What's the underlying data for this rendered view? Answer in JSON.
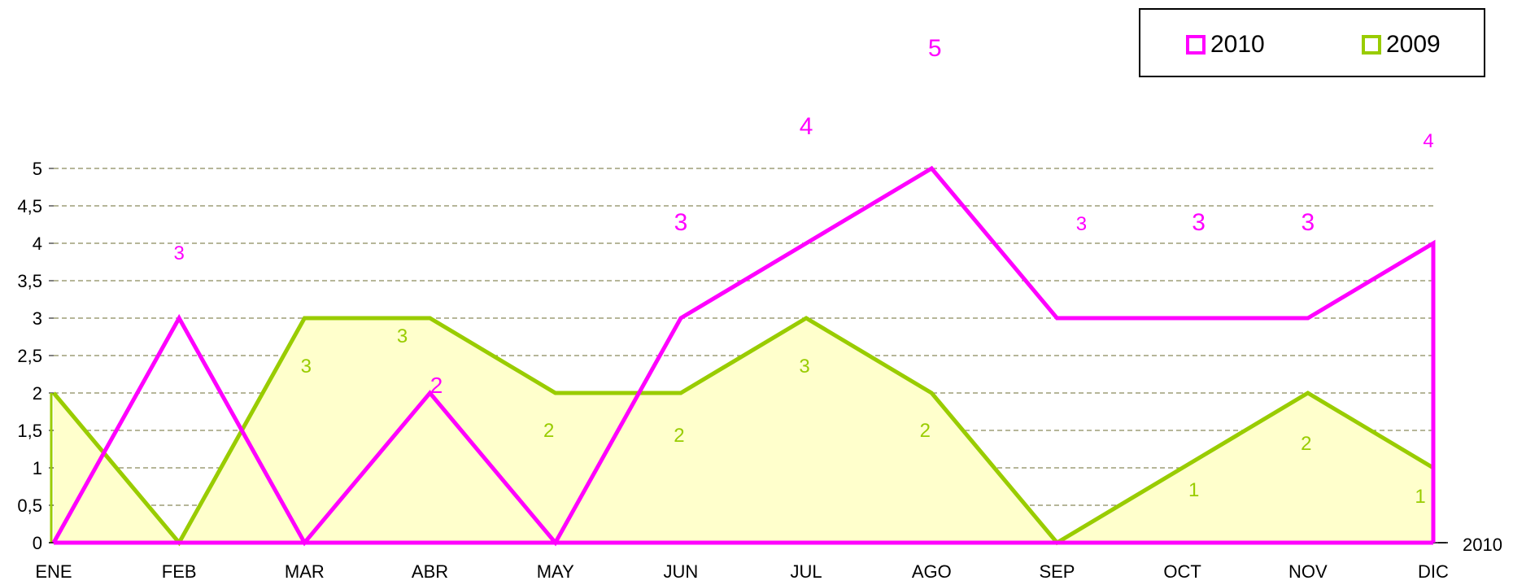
{
  "chart_data": {
    "type": "area",
    "categories": [
      "ENE",
      "FEB",
      "MAR",
      "ABR",
      "MAY",
      "JUN",
      "JUL",
      "AGO",
      "SEP",
      "OCT",
      "NOV",
      "DIC"
    ],
    "series": [
      {
        "name": "2010",
        "kind": "line",
        "color": "#ff00ff",
        "values": [
          0,
          3,
          0,
          2,
          0,
          3,
          4,
          5,
          3,
          3,
          3,
          4
        ],
        "data_labels": [
          "",
          "3",
          "",
          "2",
          "",
          "3",
          "4",
          "5",
          "3",
          "3",
          "3",
          "4"
        ]
      },
      {
        "name": "2009",
        "kind": "area",
        "color": "#99cc00",
        "fill": "#ffffcc",
        "values": [
          2,
          0,
          3,
          3,
          2,
          2,
          3,
          2,
          0,
          1,
          2,
          1
        ],
        "data_labels": [
          "",
          "",
          "3",
          "3",
          "2",
          "2",
          "3",
          "2",
          "",
          "1",
          "2",
          "1"
        ]
      }
    ],
    "yticks": [
      "0",
      "0,5",
      "1",
      "1,5",
      "2",
      "2,5",
      "3",
      "3,5",
      "4",
      "4,5",
      "5"
    ],
    "ylim": [
      0,
      5
    ],
    "grid": "horizontal dashed",
    "gridColor": "#8a8a5c",
    "legend": "top-right",
    "depth_axis_label": "2010"
  }
}
